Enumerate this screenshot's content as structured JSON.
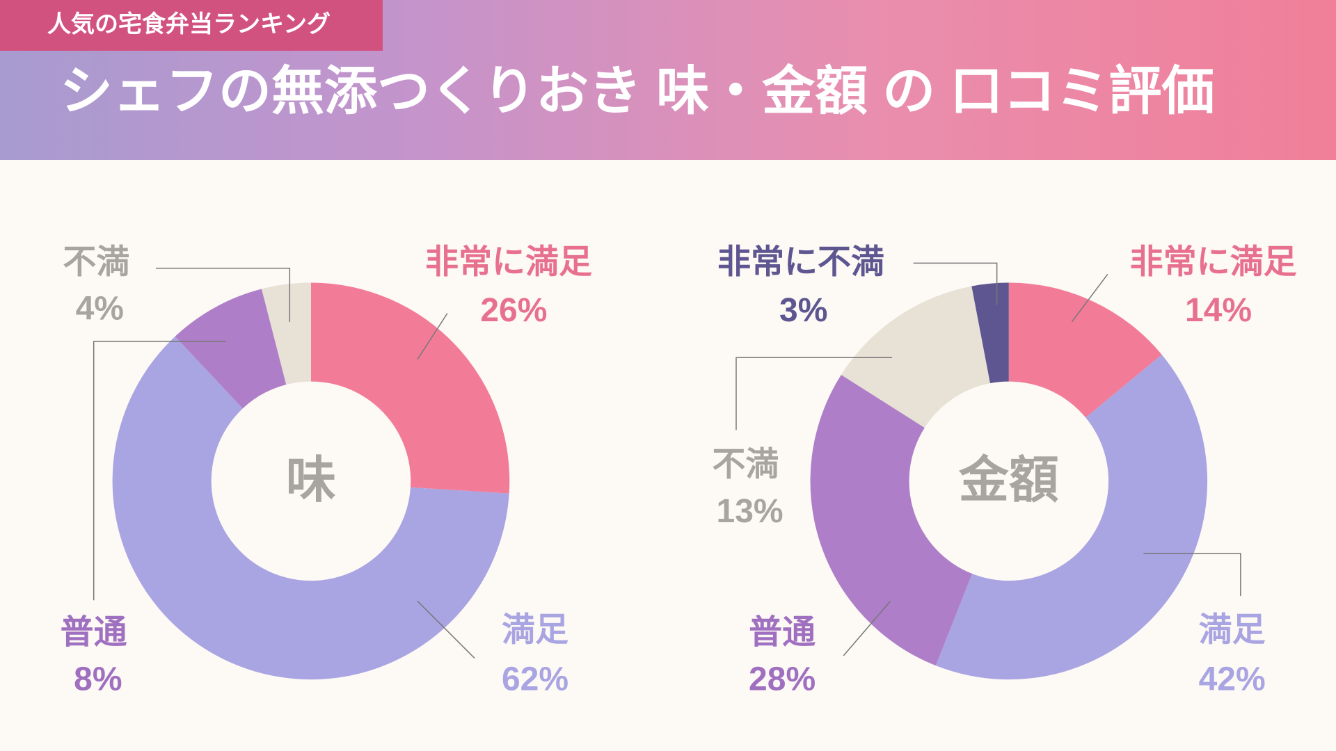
{
  "header": {
    "tag": "人気の宅食弁当ランキング",
    "title": "シェフの無添つくりおき 味・金額 の 口コミ評価"
  },
  "chart_data": [
    {
      "type": "pie",
      "title": "味",
      "categories": [
        "非常に満足",
        "満足",
        "普通",
        "不満"
      ],
      "values": [
        26,
        62,
        8,
        4
      ],
      "value_labels": [
        "26%",
        "62%",
        "8%",
        "4%"
      ],
      "colors": [
        "#f27c98",
        "#a9a4e2",
        "#ae7ec8",
        "#e8e1d6"
      ]
    },
    {
      "type": "pie",
      "title": "金額",
      "categories": [
        "非常に満足",
        "満足",
        "普通",
        "不満",
        "非常に不満"
      ],
      "values": [
        14,
        42,
        28,
        13,
        3
      ],
      "value_labels": [
        "14%",
        "42%",
        "28%",
        "13%",
        "3%"
      ],
      "colors": [
        "#f27c98",
        "#a9a4e2",
        "#ae7ec8",
        "#e8e1d6",
        "#5e5690"
      ]
    }
  ]
}
